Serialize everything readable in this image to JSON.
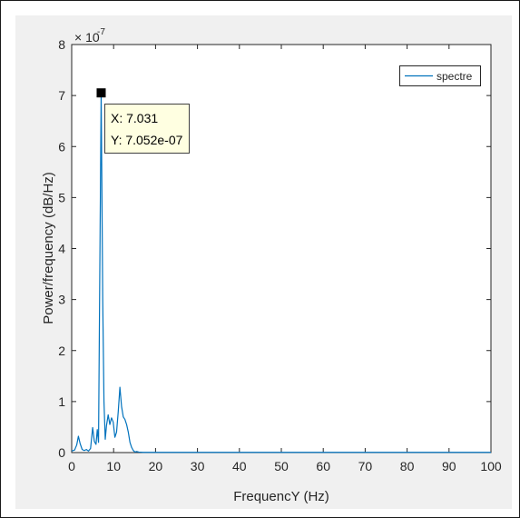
{
  "chart_data": {
    "type": "line",
    "title": "",
    "xlabel": "FrequencY (Hz)",
    "ylabel": "Power/frequency (dB/Hz)",
    "xlim": [
      0,
      100
    ],
    "ylim": [
      0,
      8e-07
    ],
    "xticks": [
      "0",
      "10",
      "20",
      "30",
      "40",
      "50",
      "60",
      "70",
      "80",
      "90",
      "100"
    ],
    "yticks": [
      "0",
      "1",
      "2",
      "3",
      "4",
      "5",
      "6",
      "7",
      "8"
    ],
    "y_exponent_label": "× 10",
    "y_exponent_power": "-7",
    "grid": false,
    "legend_position": "top-right",
    "series": [
      {
        "name": "spectre",
        "color": "#0072bd",
        "x": [
          0,
          0.7,
          1.2,
          1.6,
          2.0,
          2.5,
          3.0,
          3.5,
          4.0,
          4.5,
          5.0,
          5.4,
          5.8,
          6.1,
          6.4,
          6.7,
          7.031,
          7.4,
          7.7,
          8.0,
          8.3,
          8.7,
          9.1,
          9.5,
          9.9,
          10.3,
          10.7,
          11.1,
          11.5,
          11.9,
          12.3,
          12.7,
          13.1,
          13.5,
          13.9,
          14.3,
          14.7,
          15.1,
          15.5,
          16,
          17,
          20,
          30,
          40,
          50,
          60,
          70,
          80,
          90,
          100
        ],
        "y": [
          3e-09,
          5e-09,
          1.5e-08,
          3.2e-08,
          1.8e-08,
          6e-09,
          4e-09,
          6e-09,
          3e-09,
          8e-09,
          4.9e-08,
          2.2e-08,
          1.6e-08,
          4.5e-08,
          2e-08,
          3.5e-07,
          7.052e-07,
          3e-07,
          1e-07,
          2.6e-08,
          5.3e-08,
          7.4e-08,
          5.5e-08,
          6.8e-08,
          6e-08,
          3e-08,
          4e-08,
          8e-08,
          1.28e-07,
          9e-08,
          7e-08,
          6.5e-08,
          5.5e-08,
          4e-08,
          2e-08,
          1e-08,
          4e-09,
          1e-09,
          2e-09,
          1e-09,
          5e-10,
          5e-10,
          5e-10,
          5e-10,
          5e-10,
          5e-10,
          5e-10,
          5e-10,
          5e-10,
          5e-10
        ]
      }
    ],
    "datatip": {
      "x": 7.031,
      "y": 7.052e-07,
      "x_text": "X: 7.031",
      "y_text": "Y: 7.052e-07"
    }
  }
}
